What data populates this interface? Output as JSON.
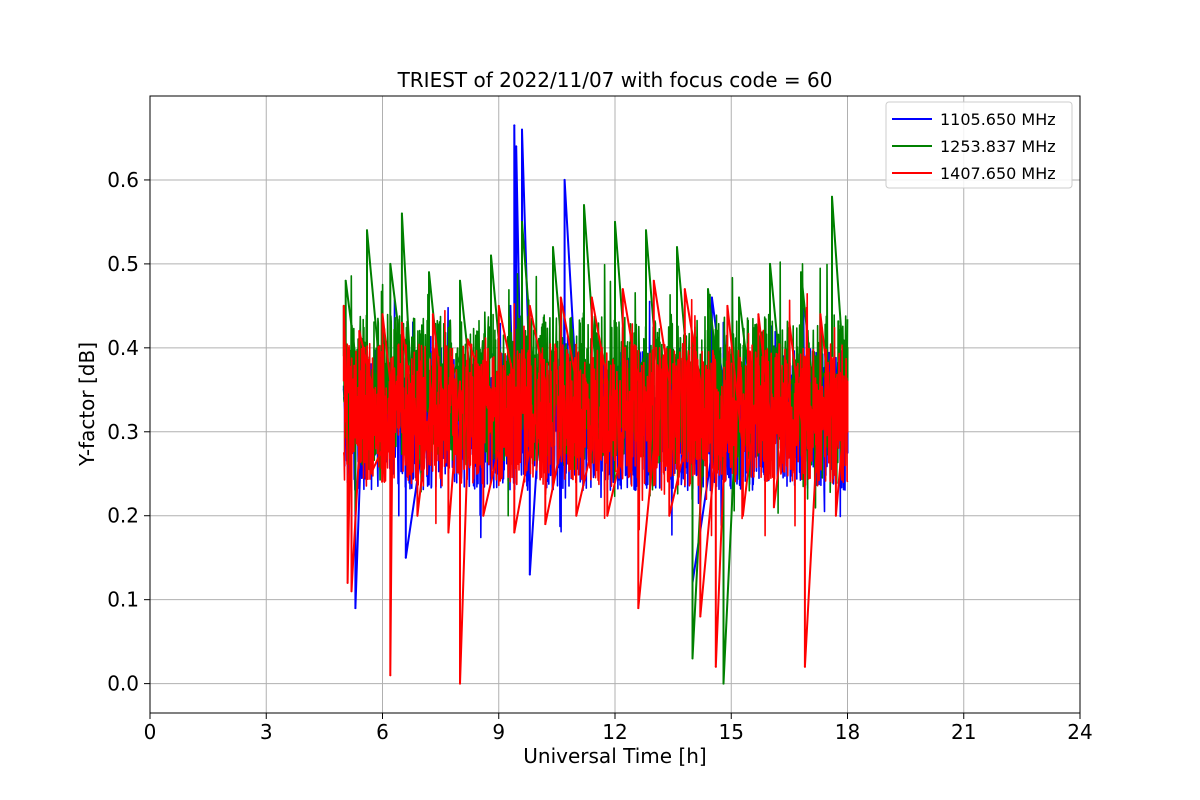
{
  "chart_data": {
    "type": "line",
    "title": "TRIEST of 2022/11/07 with focus code = 60",
    "xlabel": "Universal Time [h]",
    "ylabel": "Y-factor [dB]",
    "xlim": [
      0,
      24
    ],
    "ylim": [
      -0.035,
      0.7
    ],
    "xticks": [
      0,
      3,
      6,
      9,
      12,
      15,
      18,
      21,
      24
    ],
    "yticks": [
      0.0,
      0.1,
      0.2,
      0.3,
      0.4,
      0.5,
      0.6
    ],
    "xtick_labels": [
      "0",
      "3",
      "6",
      "9",
      "12",
      "15",
      "18",
      "21",
      "24"
    ],
    "ytick_labels": [
      "0.0",
      "0.1",
      "0.2",
      "0.3",
      "0.4",
      "0.5",
      "0.6"
    ],
    "grid": true,
    "legend_position": "top-right",
    "series": [
      {
        "name": "1105.650 MHz",
        "color": "#0000ff",
        "x": [
          5.0,
          5.1,
          5.2,
          5.3,
          5.5,
          5.8,
          6.0,
          6.3,
          6.6,
          7.0,
          7.5,
          8.0,
          8.5,
          9.0,
          9.3,
          9.4,
          9.45,
          9.6,
          9.8,
          10.0,
          10.4,
          10.7,
          11.0,
          11.5,
          12.0,
          12.5,
          13.0,
          13.5,
          14.0,
          14.5,
          14.8,
          15.0,
          15.5,
          16.0,
          16.5,
          17.0,
          17.5,
          18.0
        ],
        "y": [
          0.35,
          0.24,
          0.41,
          0.09,
          0.33,
          0.31,
          0.32,
          0.36,
          0.15,
          0.33,
          0.3,
          0.32,
          0.34,
          0.3,
          0.45,
          0.665,
          0.64,
          0.66,
          0.13,
          0.33,
          0.32,
          0.6,
          0.31,
          0.3,
          0.33,
          0.32,
          0.33,
          0.3,
          0.12,
          0.46,
          0.43,
          0.3,
          0.31,
          0.3,
          0.32,
          0.3,
          0.33,
          0.36
        ]
      },
      {
        "name": "1253.837 MHz",
        "color": "#008000",
        "x": [
          5.0,
          5.05,
          5.3,
          5.6,
          5.9,
          6.2,
          6.5,
          6.8,
          7.2,
          7.6,
          8.0,
          8.4,
          8.8,
          9.2,
          9.6,
          10.0,
          10.4,
          10.8,
          11.2,
          11.6,
          12.0,
          12.4,
          12.8,
          13.2,
          13.6,
          14.0,
          14.4,
          14.8,
          15.2,
          15.6,
          16.0,
          16.4,
          16.8,
          17.2,
          17.6,
          18.0
        ],
        "y": [
          0.45,
          0.48,
          0.3,
          0.54,
          0.3,
          0.5,
          0.56,
          0.33,
          0.49,
          0.34,
          0.48,
          0.36,
          0.51,
          0.35,
          0.55,
          0.36,
          0.52,
          0.34,
          0.57,
          0.35,
          0.55,
          0.36,
          0.54,
          0.34,
          0.52,
          0.03,
          0.47,
          0.0,
          0.46,
          0.35,
          0.5,
          0.34,
          0.49,
          0.35,
          0.58,
          0.4
        ]
      },
      {
        "name": "1407.650 MHz",
        "color": "#ff0000",
        "x": [
          5.0,
          5.1,
          5.2,
          5.4,
          5.7,
          6.0,
          6.2,
          6.25,
          6.5,
          6.9,
          7.3,
          7.7,
          8.0,
          8.2,
          8.6,
          9.0,
          9.4,
          9.8,
          10.2,
          10.6,
          11.0,
          11.4,
          11.8,
          12.2,
          12.6,
          13.0,
          13.4,
          13.8,
          14.2,
          14.6,
          14.9,
          15.3,
          15.7,
          16.1,
          16.5,
          16.9,
          17.3,
          17.7,
          18.0
        ],
        "y": [
          0.45,
          0.12,
          0.11,
          0.42,
          0.25,
          0.44,
          0.01,
          0.35,
          0.43,
          0.2,
          0.44,
          0.18,
          0.0,
          0.41,
          0.2,
          0.45,
          0.18,
          0.45,
          0.19,
          0.46,
          0.2,
          0.46,
          0.2,
          0.47,
          0.09,
          0.48,
          0.2,
          0.47,
          0.08,
          0.02,
          0.45,
          0.2,
          0.44,
          0.21,
          0.43,
          0.02,
          0.44,
          0.2,
          0.3
        ]
      }
    ]
  }
}
